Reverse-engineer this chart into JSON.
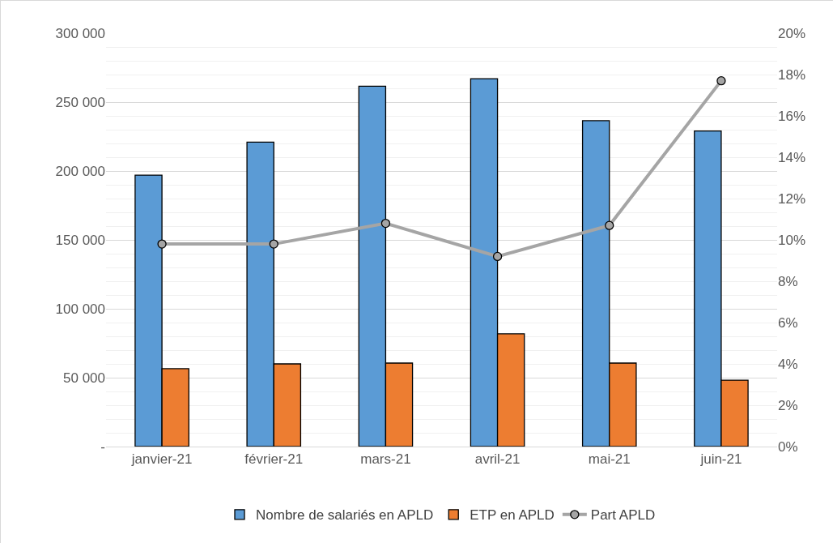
{
  "chart_data": {
    "type": "bar",
    "categories": [
      "janvier-21",
      "février-21",
      "mars-21",
      "avril-21",
      "mai-21",
      "juin-21"
    ],
    "series": [
      {
        "name": "Nombre de salariés en APLD",
        "color": "#5b9bd5",
        "values": [
          197000,
          221000,
          261500,
          267000,
          236500,
          229000
        ]
      },
      {
        "name": "ETP en APLD",
        "color": "#ed7d31",
        "values": [
          56500,
          60000,
          60600,
          81800,
          60600,
          48200
        ]
      },
      {
        "name": "Part APLD",
        "type": "line",
        "axis": "y2",
        "color": "#a5a5a5",
        "values": [
          9.8,
          9.8,
          10.8,
          9.2,
          10.7,
          17.7
        ]
      }
    ],
    "ylim": [
      0,
      300000
    ],
    "yticks": [
      {
        "value": 0,
        "label": "-"
      },
      {
        "value": 50000,
        "label": "50 000"
      },
      {
        "value": 100000,
        "label": "100 000"
      },
      {
        "value": 150000,
        "label": "150 000"
      },
      {
        "value": 200000,
        "label": "200 000"
      },
      {
        "value": 250000,
        "label": "250 000"
      },
      {
        "value": 300000,
        "label": "300 000"
      }
    ],
    "y2lim": [
      0,
      20
    ],
    "y2ticks": [
      {
        "value": 0,
        "label": "0%"
      },
      {
        "value": 2,
        "label": "2%"
      },
      {
        "value": 4,
        "label": "4%"
      },
      {
        "value": 6,
        "label": "6%"
      },
      {
        "value": 8,
        "label": "8%"
      },
      {
        "value": 10,
        "label": "10%"
      },
      {
        "value": 12,
        "label": "12%"
      },
      {
        "value": 14,
        "label": "14%"
      },
      {
        "value": 16,
        "label": "16%"
      },
      {
        "value": 18,
        "label": "18%"
      },
      {
        "value": 20,
        "label": "20%"
      }
    ],
    "grid": "y",
    "legend": "bottom",
    "marker": "circle",
    "line_style": "solid"
  }
}
